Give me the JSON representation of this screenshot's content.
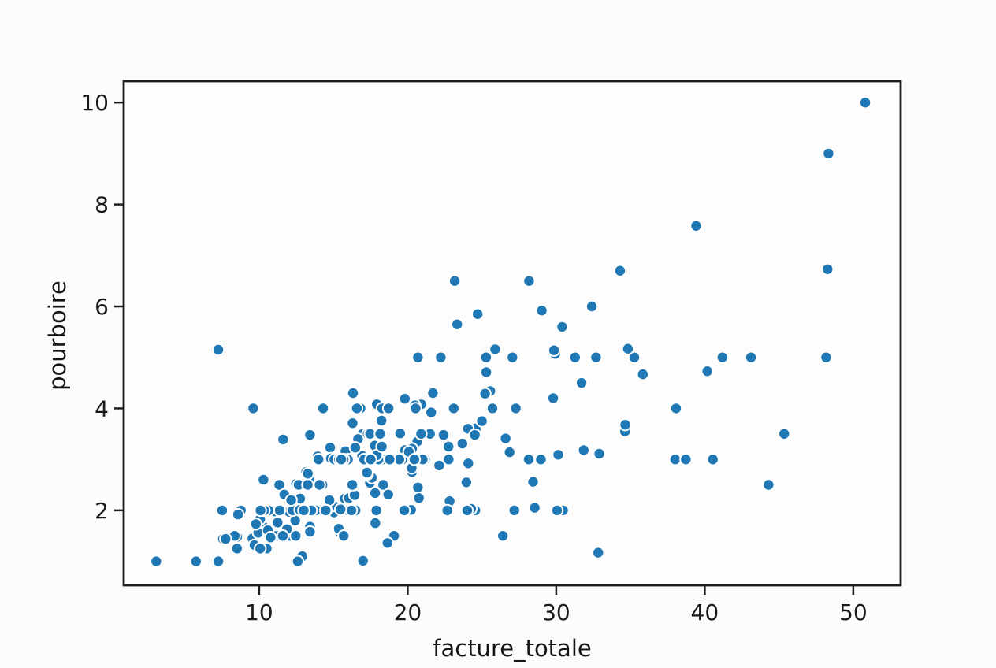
{
  "chart_data": {
    "type": "scatter",
    "title": "",
    "xlabel": "facture_totale",
    "ylabel": "pourboire",
    "xlim": [
      0.88,
      53.19
    ],
    "ylim": [
      0.53,
      10.42
    ],
    "xticks": [
      10,
      20,
      30,
      40,
      50
    ],
    "yticks": [
      2,
      4,
      6,
      8,
      10
    ],
    "grid": false,
    "legend": "none",
    "marker_color": "#1f77b4",
    "marker_edge_color": "#ffffff",
    "spine_color": "#1c1c1c",
    "background_color": "#fcfcfc",
    "points": [
      [
        16.99,
        1.01
      ],
      [
        10.34,
        1.66
      ],
      [
        21.01,
        3.5
      ],
      [
        23.68,
        3.31
      ],
      [
        24.59,
        3.61
      ],
      [
        25.29,
        4.71
      ],
      [
        8.77,
        2.0
      ],
      [
        26.88,
        3.12
      ],
      [
        15.04,
        1.96
      ],
      [
        14.78,
        3.23
      ],
      [
        10.27,
        1.71
      ],
      [
        35.26,
        5.0
      ],
      [
        15.42,
        1.57
      ],
      [
        18.43,
        3.0
      ],
      [
        14.83,
        3.02
      ],
      [
        21.58,
        3.92
      ],
      [
        10.33,
        1.67
      ],
      [
        16.29,
        3.71
      ],
      [
        16.97,
        3.5
      ],
      [
        20.65,
        3.35
      ],
      [
        17.92,
        4.08
      ],
      [
        20.29,
        2.75
      ],
      [
        15.77,
        2.23
      ],
      [
        39.42,
        7.58
      ],
      [
        19.82,
        3.18
      ],
      [
        17.81,
        2.34
      ],
      [
        13.37,
        2.0
      ],
      [
        12.69,
        2.0
      ],
      [
        21.7,
        4.3
      ],
      [
        19.65,
        3.0
      ],
      [
        9.55,
        1.45
      ],
      [
        18.35,
        2.5
      ],
      [
        15.06,
        3.0
      ],
      [
        20.69,
        2.45
      ],
      [
        17.78,
        3.27
      ],
      [
        24.06,
        3.6
      ],
      [
        16.31,
        2.0
      ],
      [
        16.93,
        3.07
      ],
      [
        18.69,
        2.31
      ],
      [
        31.27,
        5.0
      ],
      [
        16.04,
        2.24
      ],
      [
        17.46,
        2.54
      ],
      [
        13.94,
        3.06
      ],
      [
        9.68,
        1.32
      ],
      [
        30.4,
        5.6
      ],
      [
        18.29,
        3.0
      ],
      [
        22.23,
        5.0
      ],
      [
        32.4,
        6.0
      ],
      [
        28.55,
        2.05
      ],
      [
        18.04,
        3.0
      ],
      [
        12.54,
        2.5
      ],
      [
        10.29,
        2.6
      ],
      [
        34.81,
        5.2
      ],
      [
        9.94,
        1.56
      ],
      [
        25.56,
        4.34
      ],
      [
        19.49,
        3.51
      ],
      [
        38.01,
        3.0
      ],
      [
        26.41,
        1.5
      ],
      [
        11.24,
        1.76
      ],
      [
        48.27,
        6.73
      ],
      [
        20.29,
        3.21
      ],
      [
        13.81,
        2.0
      ],
      [
        11.02,
        1.98
      ],
      [
        18.29,
        3.76
      ],
      [
        17.59,
        2.64
      ],
      [
        20.08,
        3.15
      ],
      [
        16.45,
        2.47
      ],
      [
        3.07,
        1.0
      ],
      [
        20.23,
        2.01
      ],
      [
        15.01,
        2.09
      ],
      [
        12.02,
        1.97
      ],
      [
        17.07,
        3.0
      ],
      [
        26.86,
        3.14
      ],
      [
        25.28,
        5.0
      ],
      [
        14.73,
        2.2
      ],
      [
        10.51,
        1.25
      ],
      [
        17.92,
        3.08
      ],
      [
        27.2,
        4.0
      ],
      [
        22.76,
        3.0
      ],
      [
        17.29,
        2.71
      ],
      [
        19.44,
        3.0
      ],
      [
        16.66,
        3.4
      ],
      [
        10.07,
        1.83
      ],
      [
        32.68,
        5.0
      ],
      [
        15.98,
        2.03
      ],
      [
        34.83,
        5.17
      ],
      [
        13.03,
        2.0
      ],
      [
        18.28,
        4.0
      ],
      [
        24.71,
        5.85
      ],
      [
        21.16,
        3.0
      ],
      [
        28.97,
        3.0
      ],
      [
        22.49,
        3.5
      ],
      [
        5.75,
        1.0
      ],
      [
        16.32,
        4.3
      ],
      [
        22.75,
        3.25
      ],
      [
        40.17,
        4.73
      ],
      [
        27.28,
        4.0
      ],
      [
        12.03,
        1.5
      ],
      [
        21.01,
        3.0
      ],
      [
        12.46,
        1.5
      ],
      [
        11.35,
        2.5
      ],
      [
        15.38,
        3.0
      ],
      [
        44.3,
        2.5
      ],
      [
        22.42,
        3.48
      ],
      [
        20.92,
        4.08
      ],
      [
        15.36,
        1.64
      ],
      [
        20.49,
        4.06
      ],
      [
        25.21,
        4.29
      ],
      [
        18.24,
        3.76
      ],
      [
        14.31,
        4.0
      ],
      [
        14.0,
        3.0
      ],
      [
        7.25,
        1.0
      ],
      [
        38.07,
        4.0
      ],
      [
        23.95,
        2.55
      ],
      [
        25.71,
        4.0
      ],
      [
        17.31,
        3.5
      ],
      [
        29.93,
        5.07
      ],
      [
        10.65,
        1.5
      ],
      [
        12.43,
        1.8
      ],
      [
        24.08,
        2.92
      ],
      [
        11.69,
        2.31
      ],
      [
        13.42,
        1.68
      ],
      [
        14.26,
        2.5
      ],
      [
        15.95,
        2.0
      ],
      [
        12.48,
        2.52
      ],
      [
        29.8,
        4.2
      ],
      [
        8.52,
        1.48
      ],
      [
        14.52,
        2.0
      ],
      [
        11.38,
        2.0
      ],
      [
        22.82,
        2.18
      ],
      [
        19.08,
        1.5
      ],
      [
        20.27,
        2.83
      ],
      [
        11.17,
        1.5
      ],
      [
        12.26,
        2.0
      ],
      [
        18.26,
        3.25
      ],
      [
        8.51,
        1.25
      ],
      [
        10.33,
        2.0
      ],
      [
        14.15,
        2.0
      ],
      [
        16.0,
        2.0
      ],
      [
        13.16,
        2.75
      ],
      [
        17.47,
        3.5
      ],
      [
        34.3,
        6.7
      ],
      [
        41.19,
        5.0
      ],
      [
        27.05,
        5.0
      ],
      [
        16.43,
        2.3
      ],
      [
        8.35,
        1.5
      ],
      [
        18.64,
        1.36
      ],
      [
        11.87,
        1.63
      ],
      [
        9.78,
        1.73
      ],
      [
        7.51,
        2.0
      ],
      [
        14.07,
        2.5
      ],
      [
        13.13,
        2.0
      ],
      [
        17.26,
        2.74
      ],
      [
        24.55,
        2.0
      ],
      [
        19.77,
        2.0
      ],
      [
        29.85,
        5.14
      ],
      [
        48.17,
        5.0
      ],
      [
        25.0,
        3.75
      ],
      [
        13.39,
        2.61
      ],
      [
        16.49,
        2.0
      ],
      [
        21.5,
        3.5
      ],
      [
        12.66,
        2.5
      ],
      [
        16.21,
        2.0
      ],
      [
        13.81,
        2.0
      ],
      [
        17.51,
        3.0
      ],
      [
        24.52,
        3.48
      ],
      [
        20.76,
        2.24
      ],
      [
        31.71,
        4.5
      ],
      [
        10.59,
        1.61
      ],
      [
        10.63,
        2.0
      ],
      [
        50.81,
        10.0
      ],
      [
        15.81,
        3.16
      ],
      [
        7.25,
        5.15
      ],
      [
        31.85,
        3.18
      ],
      [
        16.82,
        4.0
      ],
      [
        32.9,
        3.11
      ],
      [
        17.89,
        2.0
      ],
      [
        14.48,
        2.0
      ],
      [
        9.6,
        4.0
      ],
      [
        34.63,
        3.55
      ],
      [
        34.65,
        3.68
      ],
      [
        23.33,
        5.65
      ],
      [
        45.35,
        3.5
      ],
      [
        23.17,
        6.5
      ],
      [
        40.55,
        3.0
      ],
      [
        20.69,
        5.0
      ],
      [
        20.9,
        3.5
      ],
      [
        30.46,
        2.0
      ],
      [
        18.15,
        3.5
      ],
      [
        23.1,
        4.0
      ],
      [
        15.69,
        1.5
      ],
      [
        19.81,
        4.19
      ],
      [
        28.44,
        2.56
      ],
      [
        15.48,
        2.02
      ],
      [
        16.58,
        4.0
      ],
      [
        7.56,
        1.44
      ],
      [
        10.34,
        2.0
      ],
      [
        43.11,
        5.0
      ],
      [
        13.0,
        2.0
      ],
      [
        13.51,
        2.0
      ],
      [
        18.71,
        4.0
      ],
      [
        12.74,
        2.01
      ],
      [
        13.0,
        2.0
      ],
      [
        16.4,
        2.5
      ],
      [
        20.53,
        4.0
      ],
      [
        16.47,
        3.23
      ],
      [
        26.59,
        3.41
      ],
      [
        38.73,
        3.0
      ],
      [
        24.27,
        2.03
      ],
      [
        12.76,
        2.23
      ],
      [
        30.06,
        2.0
      ],
      [
        25.89,
        5.16
      ],
      [
        48.33,
        9.0
      ],
      [
        13.27,
        2.5
      ],
      [
        28.17,
        6.5
      ],
      [
        12.9,
        1.1
      ],
      [
        28.15,
        3.0
      ],
      [
        11.59,
        1.5
      ],
      [
        7.74,
        1.44
      ],
      [
        30.14,
        3.09
      ],
      [
        12.16,
        2.2
      ],
      [
        13.42,
        3.48
      ],
      [
        8.58,
        1.92
      ],
      [
        15.98,
        3.0
      ],
      [
        13.42,
        1.58
      ],
      [
        16.27,
        2.5
      ],
      [
        10.09,
        2.0
      ],
      [
        20.45,
        3.0
      ],
      [
        13.28,
        2.72
      ],
      [
        22.12,
        2.88
      ],
      [
        24.01,
        2.0
      ],
      [
        15.69,
        3.0
      ],
      [
        11.61,
        3.39
      ],
      [
        10.77,
        1.47
      ],
      [
        15.53,
        3.0
      ],
      [
        10.07,
        1.25
      ],
      [
        12.6,
        1.0
      ],
      [
        32.83,
        1.17
      ],
      [
        35.83,
        4.67
      ],
      [
        29.03,
        5.92
      ],
      [
        27.18,
        2.0
      ],
      [
        22.67,
        2.0
      ],
      [
        17.82,
        1.75
      ],
      [
        18.78,
        3.0
      ]
    ]
  }
}
